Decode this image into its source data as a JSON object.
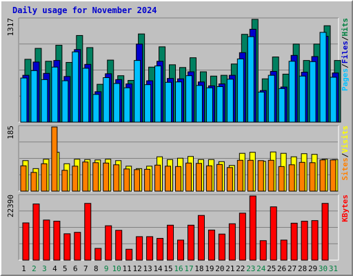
{
  "title": "Daily usage for November 2024",
  "chart_data": [
    {
      "type": "bar",
      "panel": "top",
      "categories": [
        "1",
        "2",
        "3",
        "4",
        "5",
        "6",
        "7",
        "8",
        "9",
        "10",
        "11",
        "12",
        "13",
        "14",
        "15",
        "16",
        "17",
        "18",
        "19",
        "20",
        "21",
        "22",
        "23",
        "24",
        "25",
        "26",
        "27",
        "28",
        "29",
        "30",
        "31"
      ],
      "ymax_label": "1317",
      "ylim": [
        0,
        1317
      ],
      "series": [
        {
          "name": "Hits",
          "values": [
            805,
            945,
            780,
            985,
            765,
            1110,
            955,
            485,
            795,
            595,
            535,
            1130,
            705,
            965,
            735,
            700,
            825,
            645,
            590,
            600,
            745,
            1125,
            1317,
            555,
            835,
            615,
            1000,
            790,
            1000,
            1235,
            790
          ]
        },
        {
          "name": "Files",
          "values": [
            600,
            770,
            625,
            790,
            585,
            930,
            740,
            390,
            620,
            545,
            490,
            1000,
            530,
            780,
            560,
            555,
            645,
            515,
            465,
            490,
            600,
            890,
            1190,
            405,
            650,
            450,
            855,
            640,
            840,
            1100,
            630
          ]
        },
        {
          "name": "Pages",
          "values": [
            565,
            660,
            545,
            705,
            530,
            900,
            690,
            355,
            570,
            495,
            440,
            790,
            480,
            720,
            510,
            515,
            595,
            470,
            440,
            455,
            550,
            810,
            1095,
            385,
            600,
            430,
            780,
            590,
            775,
            1150,
            575
          ]
        }
      ],
      "legend": [
        {
          "text": "Hits",
          "color": "#008040"
        },
        {
          "text": "/",
          "color": "#000000"
        },
        {
          "text": "Files",
          "color": "#0000cc"
        },
        {
          "text": "/",
          "color": "#000000"
        },
        {
          "text": "Pages",
          "color": "#00c0ff"
        }
      ]
    },
    {
      "type": "bar",
      "panel": "middle",
      "categories": [
        "1",
        "2",
        "3",
        "4",
        "5",
        "6",
        "7",
        "8",
        "9",
        "10",
        "11",
        "12",
        "13",
        "14",
        "15",
        "16",
        "17",
        "18",
        "19",
        "20",
        "21",
        "22",
        "23",
        "24",
        "25",
        "26",
        "27",
        "28",
        "29",
        "30",
        "31"
      ],
      "ymax_label": "185",
      "ylim": [
        0,
        185
      ],
      "series": [
        {
          "name": "Visits",
          "values": [
            88,
            65,
            92,
            112,
            79,
            92,
            91,
            90,
            92,
            88,
            72,
            65,
            72,
            99,
            91,
            95,
            100,
            91,
            91,
            85,
            74,
            109,
            112,
            86,
            113,
            109,
            99,
            108,
            106,
            92,
            91
          ]
        },
        {
          "name": "Sites",
          "values": [
            73,
            54,
            79,
            185,
            60,
            72,
            84,
            82,
            81,
            76,
            64,
            62,
            63,
            75,
            72,
            71,
            81,
            80,
            73,
            77,
            68,
            89,
            89,
            88,
            89,
            71,
            76,
            83,
            82,
            90,
            90
          ]
        }
      ],
      "legend": [
        {
          "text": "Visits",
          "color": "#ffff00"
        },
        {
          "text": "/",
          "color": "#000000"
        },
        {
          "text": "Sites",
          "color": "#ff8000"
        }
      ]
    },
    {
      "type": "bar",
      "panel": "bottom",
      "categories": [
        "1",
        "2",
        "3",
        "4",
        "5",
        "6",
        "7",
        "8",
        "9",
        "10",
        "11",
        "12",
        "13",
        "14",
        "15",
        "16",
        "17",
        "18",
        "19",
        "20",
        "21",
        "22",
        "23",
        "24",
        "25",
        "26",
        "27",
        "28",
        "29",
        "30",
        "31"
      ],
      "ymax_label": "22390",
      "ylim": [
        0,
        22390
      ],
      "series": [
        {
          "name": "KBytes",
          "values": [
            13000,
            19600,
            14000,
            13600,
            9200,
            9700,
            19800,
            4100,
            12000,
            10400,
            3800,
            8200,
            8200,
            7600,
            12200,
            7000,
            12200,
            15600,
            10500,
            9100,
            12700,
            16400,
            22390,
            6800,
            18600,
            7000,
            12900,
            13600,
            13800,
            19800,
            0
          ]
        }
      ],
      "legend": [
        {
          "text": "KBytes",
          "color": "#ff0000"
        }
      ]
    }
  ],
  "x_label_colors": {
    "weekday": "#000000",
    "weekend": "#008040"
  },
  "weekend_days": [
    "2",
    "3",
    "9",
    "10",
    "16",
    "17",
    "23",
    "24",
    "30",
    "31"
  ]
}
